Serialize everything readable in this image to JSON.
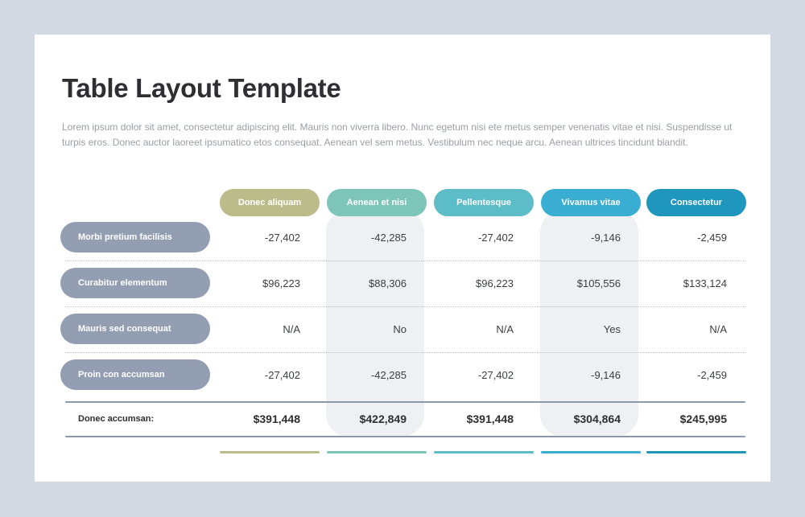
{
  "title": "Table Layout Template",
  "description": "Lorem ipsum dolor sit amet, consectetur adipiscing elit. Mauris non viverra libero. Nunc egetum nisi ete metus semper venenatis vitae et nisi. Suspendisse ut turpis eros. Donec auctor laoreet ipsumatico etos consequat. Aenean vel sem metus. Vestibulum nec neque arcu. Aenean ultrices tincidunt blandit.",
  "columns": [
    {
      "label": "Donec aliquam",
      "color": "#bcbc8a"
    },
    {
      "label": "Aenean et nisi",
      "color": "#7dc4b9"
    },
    {
      "label": "Pellentesque",
      "color": "#5cbcc8"
    },
    {
      "label": "Vivamus vitae",
      "color": "#3aaed2"
    },
    {
      "label": "Consectetur",
      "color": "#1f96bd"
    }
  ],
  "rows": [
    {
      "label": "Morbi pretium facilisis",
      "values": [
        "-27,402",
        "-42,285",
        "-27,402",
        "-9,146",
        "-2,459"
      ]
    },
    {
      "label": "Curabitur elementum",
      "values": [
        "$96,223",
        "$88,306",
        "$96,223",
        "$105,556",
        "$133,124"
      ]
    },
    {
      "label": "Mauris sed consequat",
      "values": [
        "N/A",
        "No",
        "N/A",
        "Yes",
        "N/A"
      ]
    },
    {
      "label": "Proin con accumsan",
      "values": [
        "-27,402",
        "-42,285",
        "-27,402",
        "-9,146",
        "-2,459"
      ]
    }
  ],
  "totals": {
    "label": "Donec accumsan:",
    "values": [
      "$391,448",
      "$422,849",
      "$391,448",
      "$304,864",
      "$245,995"
    ]
  }
}
